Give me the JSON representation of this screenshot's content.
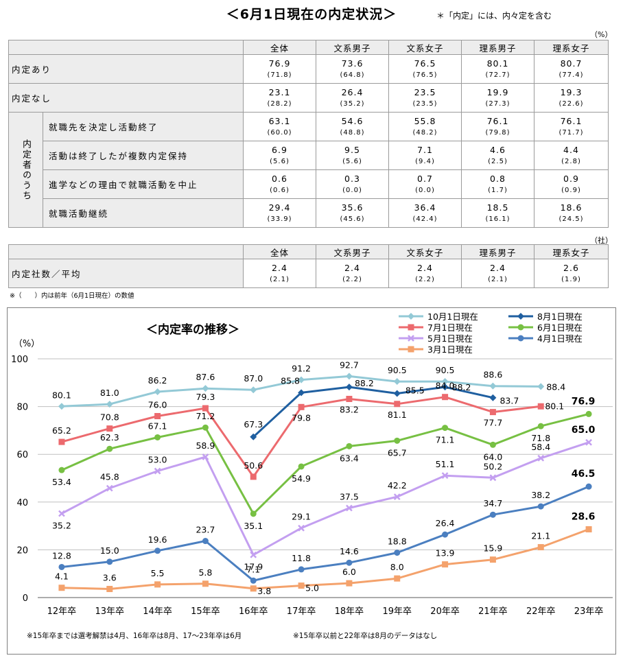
{
  "header": {
    "title": "＜6月1日現在の内定状況＞",
    "note": "＊「内定」には、内々定を含む",
    "unit_pct": "（%）",
    "unit_sha": "（社）"
  },
  "table1": {
    "columns": [
      "全体",
      "文系男子",
      "文系女子",
      "理系男子",
      "理系女子"
    ],
    "group_label": "内定者のうち",
    "rows": [
      {
        "label": "内定あり",
        "values": [
          "76.9",
          "73.6",
          "76.5",
          "80.1",
          "80.7"
        ],
        "prev": [
          "(71.8)",
          "(64.8)",
          "(76.5)",
          "(72.7)",
          "(77.4)"
        ]
      },
      {
        "label": "内定なし",
        "values": [
          "23.1",
          "26.4",
          "23.5",
          "19.9",
          "19.3"
        ],
        "prev": [
          "(28.2)",
          "(35.2)",
          "(23.5)",
          "(27.3)",
          "(22.6)"
        ]
      },
      {
        "label": "就職先を決定し活動終了",
        "values": [
          "63.1",
          "54.6",
          "55.8",
          "76.1",
          "76.1"
        ],
        "prev": [
          "(60.0)",
          "(48.8)",
          "(48.2)",
          "(79.8)",
          "(71.7)"
        ]
      },
      {
        "label": "活動は終了したが複数内定保持",
        "values": [
          "6.9",
          "9.5",
          "7.1",
          "4.6",
          "4.4"
        ],
        "prev": [
          "(5.6)",
          "(5.6)",
          "(9.4)",
          "(2.5)",
          "(2.8)"
        ]
      },
      {
        "label": "進学などの理由で就職活動を中止",
        "values": [
          "0.6",
          "0.3",
          "0.7",
          "0.8",
          "0.9"
        ],
        "prev": [
          "(0.6)",
          "(0.0)",
          "(0.0)",
          "(1.7)",
          "(0.9)"
        ]
      },
      {
        "label": "就職活動継続",
        "values": [
          "29.4",
          "35.6",
          "36.4",
          "18.5",
          "18.6"
        ],
        "prev": [
          "(33.9)",
          "(45.6)",
          "(42.4)",
          "(16.1)",
          "(24.5)"
        ]
      }
    ]
  },
  "table2": {
    "columns": [
      "全体",
      "文系男子",
      "文系女子",
      "理系男子",
      "理系女子"
    ],
    "row": {
      "label": "内定社数／平均",
      "values": [
        "2.4",
        "2.4",
        "2.4",
        "2.4",
        "2.6"
      ],
      "prev": [
        "(2.1)",
        "(2.2)",
        "(2.2)",
        "(2.1)",
        "(1.9)"
      ]
    }
  },
  "footnote": "※（　　）内は前年（6月1日現在）の数値",
  "chart_data": {
    "type": "line",
    "title": "＜内定率の推移＞",
    "ylabel": "（%）",
    "ylim": [
      0,
      100
    ],
    "yticks": [
      0,
      20,
      40,
      60,
      80,
      100
    ],
    "categories": [
      "12年卒",
      "13年卒",
      "14年卒",
      "15年卒",
      "16年卒",
      "17年卒",
      "18年卒",
      "19年卒",
      "20年卒",
      "21年卒",
      "22年卒",
      "23年卒"
    ],
    "legend_position": "top-right",
    "series": [
      {
        "name": "10月1日現在",
        "color": "#93c9d6",
        "marker": "diamond",
        "values": [
          80.1,
          81.0,
          86.2,
          87.6,
          87.0,
          91.2,
          92.7,
          90.5,
          90.5,
          88.6,
          88.4,
          null
        ]
      },
      {
        "name": "8月1日現在",
        "color": "#1f5fa0",
        "marker": "diamond",
        "values": [
          null,
          null,
          null,
          null,
          67.3,
          85.8,
          88.2,
          85.5,
          88.2,
          83.7,
          null,
          null
        ]
      },
      {
        "name": "7月1日現在",
        "color": "#ec6a6e",
        "marker": "square",
        "values": [
          65.2,
          70.8,
          76.0,
          79.3,
          50.6,
          79.8,
          83.2,
          81.1,
          84.0,
          77.7,
          80.1,
          null
        ]
      },
      {
        "name": "6月1日現在",
        "color": "#77c043",
        "marker": "circle",
        "values": [
          53.4,
          62.3,
          67.1,
          71.2,
          35.1,
          54.9,
          63.4,
          65.7,
          71.1,
          64.0,
          71.8,
          76.9
        ]
      },
      {
        "name": "5月1日現在",
        "color": "#c39ff0",
        "marker": "x",
        "values": [
          35.2,
          45.8,
          53.0,
          58.9,
          17.9,
          29.1,
          37.5,
          42.2,
          51.1,
          50.2,
          58.4,
          65.0
        ]
      },
      {
        "name": "4月1日現在",
        "color": "#4b7fc0",
        "marker": "circle",
        "values": [
          12.8,
          15.0,
          19.6,
          23.7,
          7.1,
          11.8,
          14.6,
          18.8,
          26.4,
          34.7,
          38.2,
          46.5
        ]
      },
      {
        "name": "3月1日現在",
        "color": "#f4a26c",
        "marker": "square",
        "values": [
          4.1,
          3.6,
          5.5,
          5.8,
          3.8,
          5.0,
          6.0,
          8.0,
          13.9,
          15.9,
          21.1,
          28.6
        ]
      }
    ],
    "annotations": [
      "※15年卒までは選考解禁は4月、16年卒は8月、17～23年卒は6月",
      "※15年卒以前と22年卒は8月のデータはなし"
    ]
  }
}
